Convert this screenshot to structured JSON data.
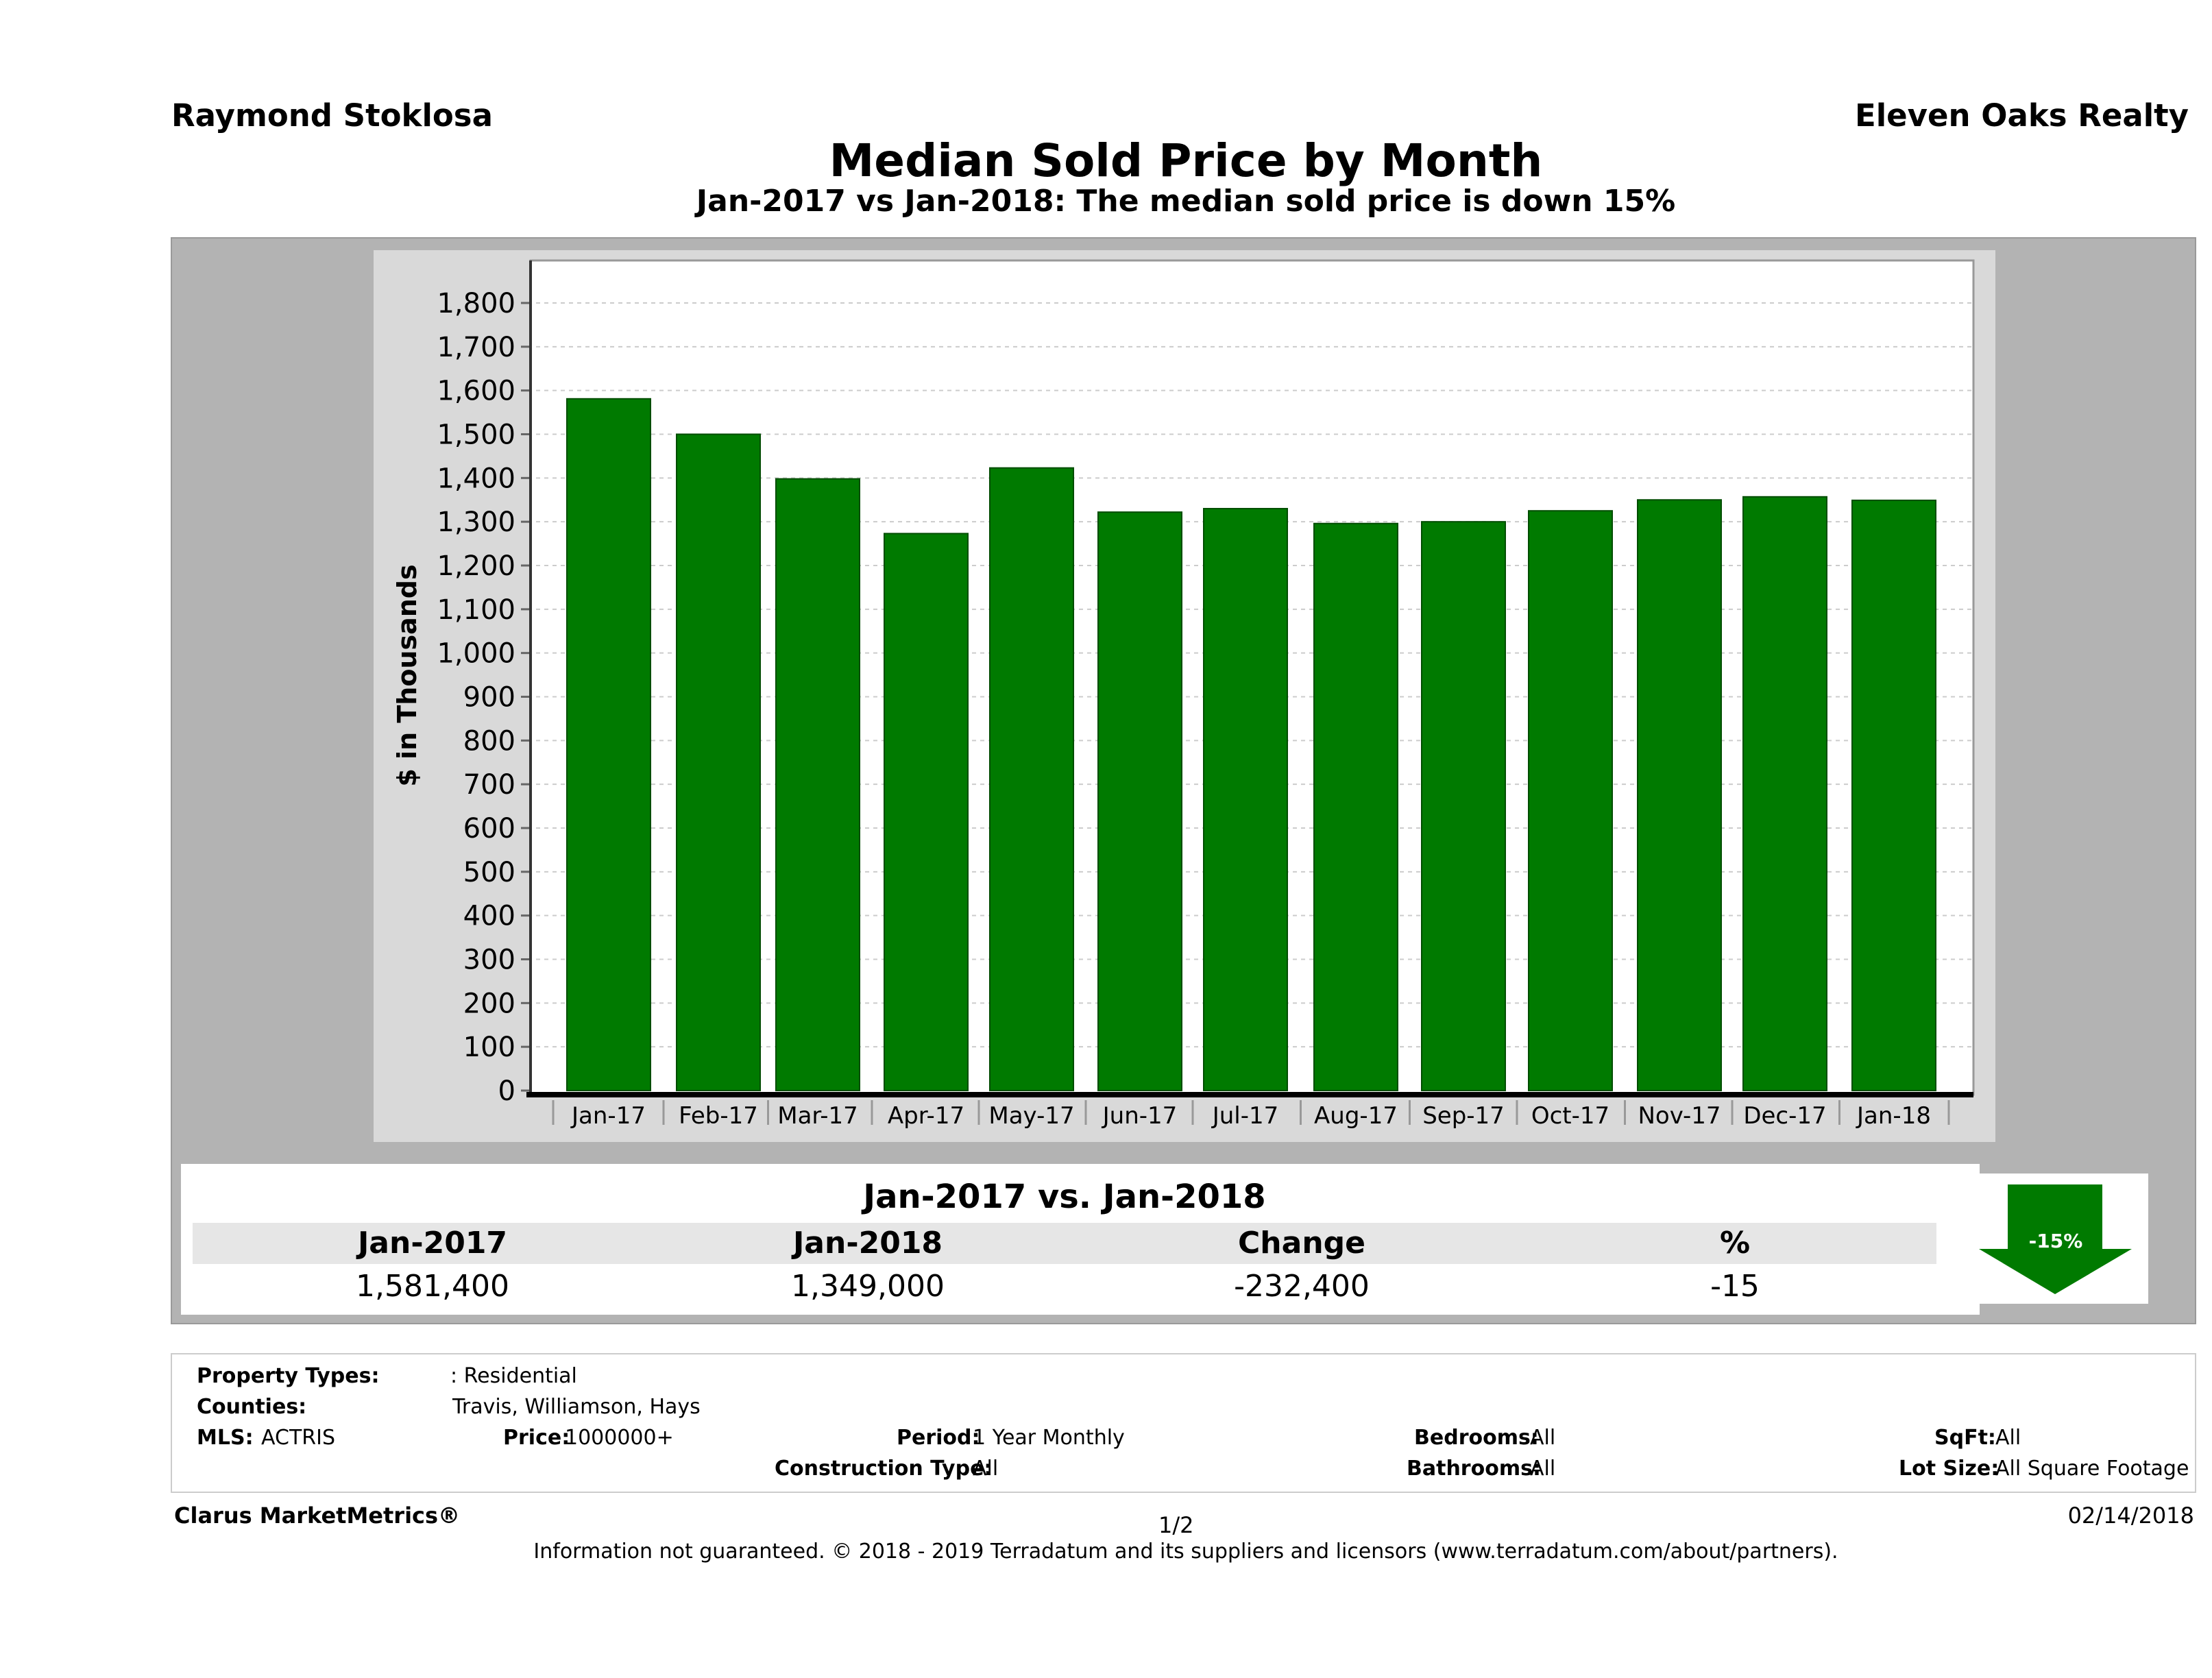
{
  "header": {
    "agent": "Raymond Stoklosa",
    "brokerage": "Eleven Oaks Realty",
    "title": "Median Sold Price by Month",
    "subtitle": "Jan-2017 vs Jan-2018: The median sold price is down 15%"
  },
  "chart_data": {
    "type": "bar",
    "title": "Median Sold Price by Month",
    "ylabel": "$ in Thousands",
    "xlabel": "",
    "ylim": [
      0,
      1800
    ],
    "yticks": [
      0,
      100,
      200,
      300,
      400,
      500,
      600,
      700,
      800,
      900,
      1000,
      1100,
      1200,
      1300,
      1400,
      1500,
      1600,
      1700,
      1800
    ],
    "categories": [
      "Jan-17",
      "Feb-17",
      "Mar-17",
      "Apr-17",
      "May-17",
      "Jun-17",
      "Jul-17",
      "Aug-17",
      "Sep-17",
      "Oct-17",
      "Nov-17",
      "Dec-17",
      "Jan-18"
    ],
    "values": [
      1581,
      1500,
      1398,
      1273,
      1423,
      1322,
      1330,
      1296,
      1300,
      1325,
      1350,
      1357,
      1349
    ],
    "bar_color": "#007a00",
    "grid": true
  },
  "comparison": {
    "title": "Jan-2017 vs. Jan-2018",
    "headers": [
      "Jan-2017",
      "Jan-2018",
      "Change",
      "%"
    ],
    "values": [
      "1,581,400",
      "1,349,000",
      "-232,400",
      "-15"
    ],
    "badge": "-15%",
    "badge_icon": "down-arrow-icon",
    "badge_color": "#007a00"
  },
  "criteria": {
    "property_types_label": "Property Types:",
    "property_types_value": ": Residential",
    "counties_label": "Counties:",
    "counties_value": "Travis, Williamson, Hays",
    "mls_label": "MLS:",
    "mls_value": "ACTRIS",
    "price_label": "Price:",
    "price_value": "1000000+",
    "period_label": "Period:",
    "period_value": "1 Year Monthly",
    "construction_label": "Construction Type:",
    "construction_value": "All",
    "bedrooms_label": "Bedrooms:",
    "bedrooms_value": "All",
    "bathrooms_label": "Bathrooms:",
    "bathrooms_value": "All",
    "sqft_label": "SqFt:",
    "sqft_value": "All",
    "lot_label": "Lot Size:",
    "lot_value": "All Square Footage"
  },
  "footer": {
    "brand": "Clarus MarketMetrics®",
    "page": "1/2",
    "date": "02/14/2018",
    "disclaimer": "Information not guaranteed. © 2018 - 2019 Terradatum and its suppliers and licensors (www.terradatum.com/about/partners)."
  }
}
